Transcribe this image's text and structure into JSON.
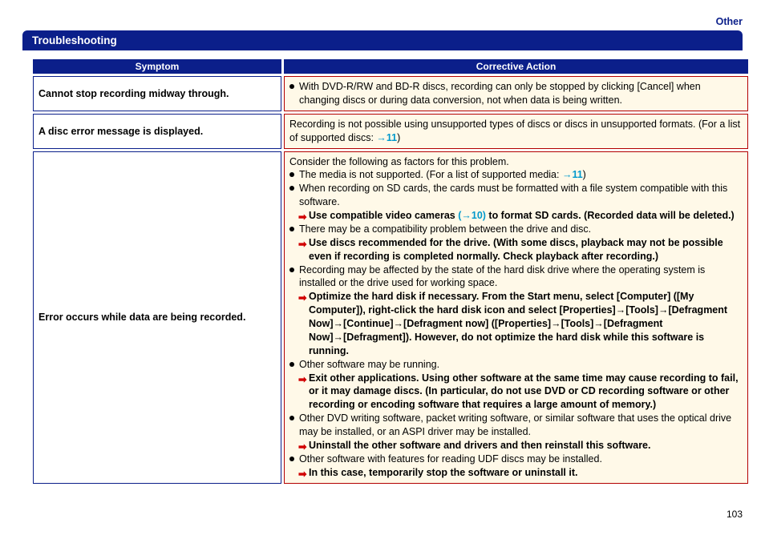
{
  "colors": {
    "brand_blue": "#0b1f8a",
    "row_border": "#b30000",
    "row_bg": "#fff9e8",
    "link_cyan": "#0099cc",
    "arrow_red": "#d10000"
  },
  "category": "Other",
  "section_title": "Troubleshooting",
  "headers": {
    "symptom": "Symptom",
    "action": "Corrective Action"
  },
  "rows": [
    {
      "symptom": "Cannot stop recording midway through.",
      "action_type": "single_bullet",
      "text": "With DVD-R/RW and BD-R discs, recording can only be stopped by clicking [Cancel] when changing discs or during data conversion, not when data is being written."
    },
    {
      "symptom": "A disc error message is displayed.",
      "action_type": "plain_with_ref",
      "text_before": "Recording is not possible using unsupported types of discs or discs in unsupported formats. (For a list of supported discs: ",
      "ref": "→11",
      "text_after": ")"
    },
    {
      "symptom": "Error occurs while data are being recorded.",
      "action_type": "complex",
      "intro": "Consider the following as factors for this problem.",
      "items": [
        {
          "type": "bullet_ref",
          "before": "The media is not supported. (For a list of supported media: ",
          "ref": "→11",
          "after": ")"
        },
        {
          "type": "bullet",
          "text": "When recording on SD cards, the cards must be formatted with a file system compatible with this software."
        },
        {
          "type": "arrow_ref",
          "before": "Use compatible video cameras ",
          "ref": "(→10)",
          "after": " to format SD cards. (Recorded data will be deleted.)"
        },
        {
          "type": "bullet",
          "text": "There may be a compatibility problem between the drive and disc."
        },
        {
          "type": "arrow",
          "text": "Use discs recommended for the drive. (With some discs, playback may not be possible even if recording is completed normally. Check playback after recording.)"
        },
        {
          "type": "bullet",
          "text": "Recording may be affected by the state of the hard disk drive where the operating system is installed or the drive used for working space."
        },
        {
          "type": "arrow",
          "text": "Optimize the hard disk if necessary. From the Start menu, select [Computer] ([My Computer]), right-click the hard disk icon and select [Properties]→[Tools]→[Defragment Now]→[Continue]→[Defragment now] ([Properties]→[Tools]→[Defragment Now]→[Defragment]). However, do not optimize the hard disk while this software is running."
        },
        {
          "type": "bullet",
          "text": "Other software may be running."
        },
        {
          "type": "arrow",
          "text": "Exit other applications. Using other software at the same time may cause recording to fail, or it may damage discs. (In particular, do not use DVD or CD recording software or other recording or encoding software that requires a large amount of memory.)"
        },
        {
          "type": "bullet",
          "text": "Other DVD writing software, packet writing software, or similar software that uses the optical drive may be installed, or an ASPI driver may be installed."
        },
        {
          "type": "arrow",
          "text": "Uninstall the other software and drivers and then reinstall this software."
        },
        {
          "type": "bullet",
          "text": "Other software with features for reading UDF discs may be installed."
        },
        {
          "type": "arrow",
          "text": "In this case, temporarily stop the software or uninstall it."
        }
      ]
    }
  ],
  "page_number": "103"
}
